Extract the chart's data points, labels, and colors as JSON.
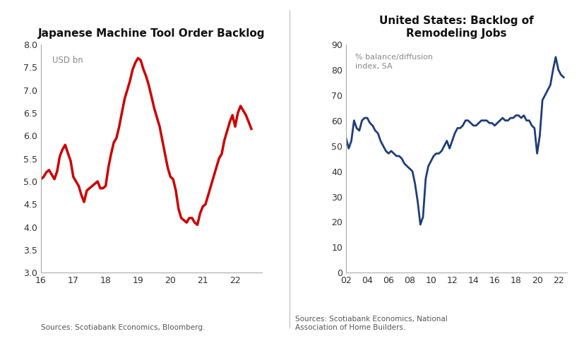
{
  "chart1": {
    "title": "Japanese Machine Tool Order Backlog",
    "ylabel": "USD bn",
    "source": "Sources: Scotiabank Economics, Bloomberg.",
    "color": "#cc0000",
    "linewidth": 2.5,
    "xlim": [
      2016.0,
      2022.83
    ],
    "ylim": [
      3.0,
      8.0
    ],
    "yticks": [
      3.0,
      3.5,
      4.0,
      4.5,
      5.0,
      5.5,
      6.0,
      6.5,
      7.0,
      7.5,
      8.0
    ],
    "xticks": [
      2016,
      2017,
      2018,
      2019,
      2020,
      2021,
      2022
    ],
    "xtick_labels": [
      "16",
      "17",
      "18",
      "19",
      "20",
      "21",
      "22"
    ],
    "x": [
      2016.0,
      2016.083,
      2016.167,
      2016.25,
      2016.333,
      2016.417,
      2016.5,
      2016.583,
      2016.667,
      2016.75,
      2016.833,
      2016.917,
      2017.0,
      2017.083,
      2017.167,
      2017.25,
      2017.333,
      2017.417,
      2017.5,
      2017.583,
      2017.667,
      2017.75,
      2017.833,
      2017.917,
      2018.0,
      2018.083,
      2018.167,
      2018.25,
      2018.333,
      2018.417,
      2018.5,
      2018.583,
      2018.667,
      2018.75,
      2018.833,
      2018.917,
      2019.0,
      2019.083,
      2019.167,
      2019.25,
      2019.333,
      2019.417,
      2019.5,
      2019.583,
      2019.667,
      2019.75,
      2019.833,
      2019.917,
      2020.0,
      2020.083,
      2020.167,
      2020.25,
      2020.333,
      2020.417,
      2020.5,
      2020.583,
      2020.667,
      2020.75,
      2020.833,
      2020.917,
      2021.0,
      2021.083,
      2021.167,
      2021.25,
      2021.333,
      2021.417,
      2021.5,
      2021.583,
      2021.667,
      2021.75,
      2021.833,
      2021.917,
      2022.0,
      2022.083,
      2022.167,
      2022.25,
      2022.333,
      2022.417,
      2022.5
    ],
    "y": [
      5.05,
      5.1,
      5.2,
      5.25,
      5.15,
      5.05,
      5.22,
      5.55,
      5.7,
      5.8,
      5.62,
      5.45,
      5.1,
      5.0,
      4.9,
      4.7,
      4.55,
      4.8,
      4.85,
      4.9,
      4.95,
      5.0,
      4.85,
      4.85,
      4.9,
      5.3,
      5.6,
      5.85,
      5.95,
      6.2,
      6.5,
      6.8,
      7.0,
      7.2,
      7.45,
      7.6,
      7.7,
      7.65,
      7.45,
      7.3,
      7.1,
      6.85,
      6.6,
      6.4,
      6.2,
      5.9,
      5.6,
      5.3,
      5.1,
      5.05,
      4.8,
      4.4,
      4.2,
      4.15,
      4.1,
      4.2,
      4.2,
      4.1,
      4.05,
      4.3,
      4.45,
      4.5,
      4.7,
      4.9,
      5.1,
      5.3,
      5.5,
      5.6,
      5.9,
      6.1,
      6.3,
      6.45,
      6.2,
      6.5,
      6.65,
      6.55,
      6.45,
      6.3,
      6.15
    ]
  },
  "chart2": {
    "title": "United States: Backlog of\nRemodeling Jobs",
    "ylabel": "% balance/diffusion\nindex, SA",
    "source": "Sources: Scotiabank Economics, National\nAssociation of Home Builders.",
    "color": "#1f3d7a",
    "linewidth": 2.0,
    "xlim": [
      2002.0,
      2022.83
    ],
    "ylim": [
      0,
      90
    ],
    "yticks": [
      0,
      10,
      20,
      30,
      40,
      50,
      60,
      70,
      80,
      90
    ],
    "xticks": [
      2002,
      2004,
      2006,
      2008,
      2010,
      2012,
      2014,
      2016,
      2018,
      2020,
      2022
    ],
    "xtick_labels": [
      "02",
      "04",
      "06",
      "08",
      "10",
      "12",
      "14",
      "16",
      "18",
      "20",
      "22"
    ],
    "x": [
      2002.0,
      2002.25,
      2002.5,
      2002.75,
      2003.0,
      2003.25,
      2003.5,
      2003.75,
      2004.0,
      2004.25,
      2004.5,
      2004.75,
      2005.0,
      2005.25,
      2005.5,
      2005.75,
      2006.0,
      2006.25,
      2006.5,
      2006.75,
      2007.0,
      2007.25,
      2007.5,
      2007.75,
      2008.0,
      2008.25,
      2008.5,
      2008.75,
      2009.0,
      2009.25,
      2009.5,
      2009.75,
      2010.0,
      2010.25,
      2010.5,
      2010.75,
      2011.0,
      2011.25,
      2011.5,
      2011.75,
      2012.0,
      2012.25,
      2012.5,
      2012.75,
      2013.0,
      2013.25,
      2013.5,
      2013.75,
      2014.0,
      2014.25,
      2014.5,
      2014.75,
      2015.0,
      2015.25,
      2015.5,
      2015.75,
      2016.0,
      2016.25,
      2016.5,
      2016.75,
      2017.0,
      2017.25,
      2017.5,
      2017.75,
      2018.0,
      2018.25,
      2018.5,
      2018.75,
      2019.0,
      2019.25,
      2019.5,
      2019.75,
      2020.0,
      2020.25,
      2020.5,
      2020.75,
      2021.0,
      2021.25,
      2021.5,
      2021.75,
      2022.0,
      2022.25,
      2022.5
    ],
    "y": [
      53,
      49,
      52,
      60,
      57,
      56,
      60,
      61,
      61,
      59,
      58,
      56,
      55,
      52,
      50,
      48,
      47,
      48,
      47,
      46,
      46,
      45,
      43,
      42,
      41,
      40,
      35,
      28,
      19,
      22,
      37,
      42,
      44,
      46,
      47,
      47,
      48,
      50,
      52,
      49,
      52,
      55,
      57,
      57,
      58,
      60,
      60,
      59,
      58,
      58,
      59,
      60,
      60,
      60,
      59,
      59,
      58,
      59,
      60,
      61,
      60,
      60,
      61,
      61,
      62,
      62,
      61,
      62,
      60,
      60,
      58,
      57,
      47,
      54,
      68,
      70,
      72,
      74,
      80,
      85,
      80,
      78,
      77
    ]
  },
  "bg_color": "#ffffff",
  "divider_color": "#bbbbbb"
}
